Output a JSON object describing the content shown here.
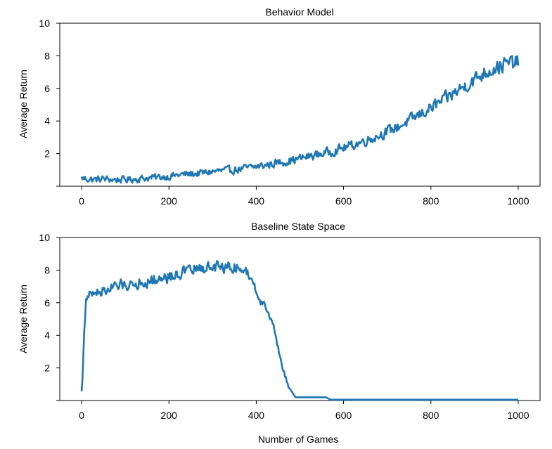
{
  "chart_data": [
    {
      "type": "line",
      "title": "Behavior Model",
      "xlabel": "",
      "ylabel": "Average Return",
      "xlim": [
        -50,
        1050
      ],
      "ylim": [
        0,
        10
      ],
      "xticks": [
        0,
        200,
        400,
        600,
        800,
        1000
      ],
      "yticks": [
        2,
        4,
        6,
        8,
        10
      ],
      "grid": false,
      "color": "#1f77b4",
      "series": [
        {
          "x": [
            0,
            25,
            50,
            75,
            100,
            125,
            150,
            175,
            200,
            225,
            250,
            275,
            300,
            325,
            350,
            375,
            400,
            425,
            450,
            475,
            500,
            525,
            550,
            575,
            600,
            625,
            650,
            675,
            700,
            725,
            750,
            775,
            800,
            825,
            850,
            875,
            900,
            925,
            950,
            975,
            1000
          ],
          "y": [
            0.5,
            0.4,
            0.45,
            0.4,
            0.4,
            0.45,
            0.5,
            0.55,
            0.6,
            0.7,
            0.75,
            0.8,
            0.9,
            0.95,
            1.0,
            1.1,
            1.2,
            1.3,
            1.45,
            1.55,
            1.7,
            1.85,
            2.0,
            2.15,
            2.35,
            2.55,
            2.8,
            3.05,
            3.35,
            3.65,
            4.0,
            4.4,
            4.8,
            5.2,
            5.65,
            6.1,
            6.55,
            7.0,
            7.3,
            7.5,
            7.6
          ],
          "noise": 0.45
        }
      ]
    },
    {
      "type": "line",
      "title": "Baseline State Space",
      "xlabel": "Number of Games",
      "ylabel": "Average Return",
      "xlim": [
        -50,
        1050
      ],
      "ylim": [
        0,
        10
      ],
      "xticks": [
        0,
        200,
        400,
        600,
        800,
        1000
      ],
      "yticks": [
        2,
        4,
        6,
        8,
        10
      ],
      "grid": false,
      "color": "#1f77b4",
      "series": [
        {
          "x": [
            0,
            3,
            6,
            10,
            20,
            40,
            60,
            80,
            100,
            150,
            200,
            250,
            300,
            350,
            380,
            395,
            405,
            420,
            440,
            460,
            475,
            490,
            520,
            560,
            570,
            600,
            700,
            800,
            900,
            1000
          ],
          "y": [
            0.4,
            2.0,
            4.5,
            6.1,
            6.5,
            6.7,
            6.8,
            7.0,
            7.1,
            7.3,
            7.6,
            8.0,
            8.2,
            8.2,
            7.9,
            7.2,
            6.1,
            5.9,
            4.5,
            2.0,
            0.8,
            0.2,
            0.2,
            0.2,
            0.05,
            0.05,
            0.05,
            0.05,
            0.05,
            0.05
          ],
          "noise": 0.5,
          "noise_until": 385
        }
      ]
    }
  ]
}
